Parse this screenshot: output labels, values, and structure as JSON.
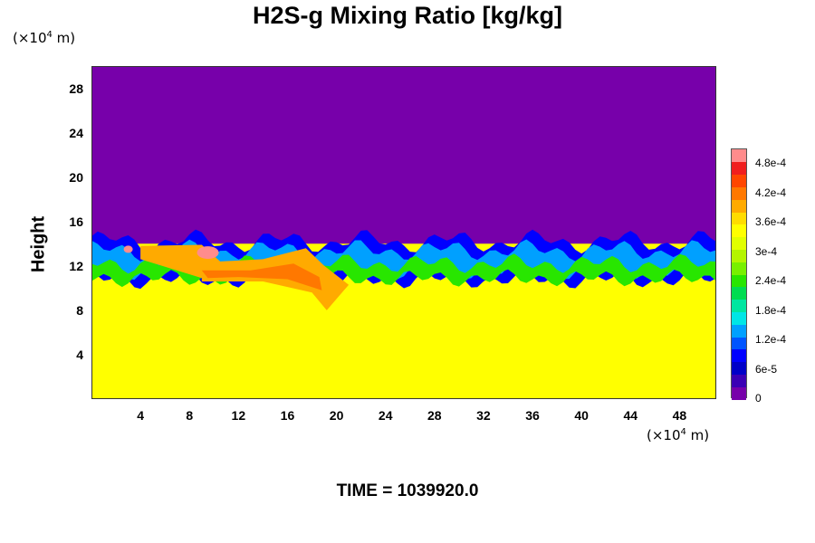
{
  "chart_data": {
    "type": "heatmap",
    "title": "H2S-g Mixing Ratio [kg/kg]",
    "ylabel": "Height",
    "y_unit": {
      "prefix": "(×10",
      "exp": "4",
      "suffix": " m)"
    },
    "x_unit": {
      "prefix": "(×10",
      "exp": "4",
      "suffix": " m)"
    },
    "xlim": [
      0,
      51
    ],
    "ylim": [
      0,
      30
    ],
    "x_ticks": [
      "4",
      "8",
      "12",
      "16",
      "20",
      "24",
      "28",
      "32",
      "36",
      "40",
      "44",
      "48"
    ],
    "y_ticks": [
      "4",
      "8",
      "12",
      "16",
      "20",
      "24",
      "28"
    ],
    "colorbar": {
      "range": [
        0,
        0.00051
      ],
      "tick_labels": [
        "0",
        "6e-5",
        "1.2e-4",
        "1.8e-4",
        "2.4e-4",
        "3e-4",
        "3.6e-4",
        "4.2e-4",
        "4.8e-4"
      ],
      "tick_values": [
        0,
        6e-05,
        0.00012,
        0.00018,
        0.00024,
        0.0003,
        0.00036,
        0.00042,
        0.00048
      ],
      "colors": [
        "#7700aa",
        "#3b00b5",
        "#0000c8",
        "#0000ff",
        "#0055ff",
        "#00a0ff",
        "#00e6e6",
        "#00e6a0",
        "#00dc50",
        "#28e600",
        "#78f000",
        "#b4f500",
        "#e1ff00",
        "#ffff00",
        "#ffdc00",
        "#ffaa00",
        "#ff7800",
        "#ff4600",
        "#f01e1e",
        "#ff8c8c"
      ]
    },
    "background_value": 0.00034,
    "top_value": 0,
    "layer_value_range": [
      9e-05,
      0.00015
    ],
    "high_value_region": {
      "x": [
        4,
        21
      ],
      "y": [
        8,
        14
      ],
      "value": 0.00043
    },
    "peak_value": 0.0005
  },
  "footer": {
    "time_label": "TIME = 1039920.0"
  }
}
